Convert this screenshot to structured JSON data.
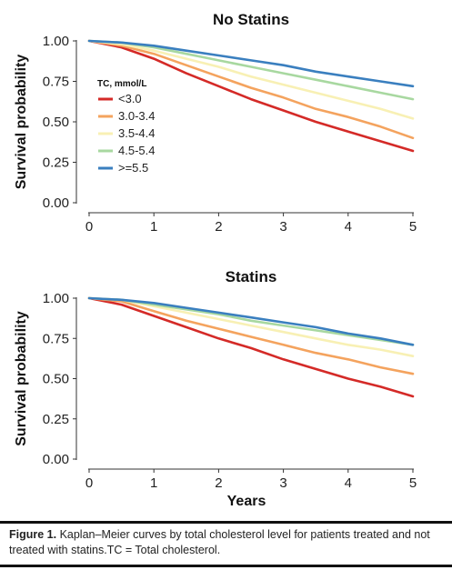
{
  "legend": {
    "title": "TC, mmol/L"
  },
  "chart_data": [
    {
      "type": "line",
      "title": "No Statins",
      "xlabel": "",
      "ylabel": "Survival probability",
      "xlim": [
        0,
        5
      ],
      "ylim": [
        0,
        1
      ],
      "x_ticks": [
        "0",
        "1",
        "2",
        "3",
        "4",
        "5"
      ],
      "y_ticks": [
        "0.00",
        "0.25",
        "0.50",
        "0.75",
        "1.00"
      ],
      "legend_position": "top-left",
      "x": [
        0,
        0.5,
        1,
        1.5,
        2,
        2.5,
        3,
        3.5,
        4,
        4.5,
        5
      ],
      "series": [
        {
          "name": "<3.0",
          "color": "#d42a27",
          "values": [
            1.0,
            0.96,
            0.89,
            0.8,
            0.72,
            0.64,
            0.57,
            0.5,
            0.44,
            0.38,
            0.32
          ]
        },
        {
          "name": "3.0-3.4",
          "color": "#f4a35e",
          "values": [
            1.0,
            0.97,
            0.92,
            0.85,
            0.78,
            0.71,
            0.65,
            0.58,
            0.53,
            0.47,
            0.4
          ]
        },
        {
          "name": "3.5-4.4",
          "color": "#f8f0b4",
          "values": [
            1.0,
            0.98,
            0.94,
            0.89,
            0.84,
            0.78,
            0.73,
            0.68,
            0.63,
            0.58,
            0.52
          ]
        },
        {
          "name": "4.5-5.4",
          "color": "#a8d8a0",
          "values": [
            1.0,
            0.99,
            0.96,
            0.92,
            0.88,
            0.84,
            0.8,
            0.76,
            0.72,
            0.68,
            0.64
          ]
        },
        {
          "name": ">=5.5",
          "color": "#3a7fbf",
          "values": [
            1.0,
            0.99,
            0.97,
            0.94,
            0.91,
            0.88,
            0.85,
            0.81,
            0.78,
            0.75,
            0.72
          ]
        }
      ]
    },
    {
      "type": "line",
      "title": "Statins",
      "xlabel": "Years",
      "ylabel": "Survival probability",
      "xlim": [
        0,
        5
      ],
      "ylim": [
        0,
        1
      ],
      "x_ticks": [
        "0",
        "1",
        "2",
        "3",
        "4",
        "5"
      ],
      "y_ticks": [
        "0.00",
        "0.25",
        "0.50",
        "0.75",
        "1.00"
      ],
      "x": [
        0,
        0.5,
        1,
        1.5,
        2,
        2.5,
        3,
        3.5,
        4,
        4.5,
        5
      ],
      "series": [
        {
          "name": "<3.0",
          "color": "#d42a27",
          "values": [
            1.0,
            0.96,
            0.89,
            0.82,
            0.75,
            0.69,
            0.62,
            0.56,
            0.5,
            0.45,
            0.39
          ]
        },
        {
          "name": "3.0-3.4",
          "color": "#f4a35e",
          "values": [
            1.0,
            0.98,
            0.92,
            0.86,
            0.81,
            0.76,
            0.71,
            0.66,
            0.62,
            0.57,
            0.53
          ]
        },
        {
          "name": "3.5-4.4",
          "color": "#f8f0b4",
          "values": [
            1.0,
            0.99,
            0.95,
            0.91,
            0.87,
            0.83,
            0.79,
            0.75,
            0.71,
            0.68,
            0.64
          ]
        },
        {
          "name": "4.5-5.4",
          "color": "#a8d8a0",
          "values": [
            1.0,
            0.99,
            0.96,
            0.93,
            0.9,
            0.86,
            0.83,
            0.8,
            0.77,
            0.74,
            0.71
          ]
        },
        {
          "name": ">=5.5",
          "color": "#3a7fbf",
          "values": [
            1.0,
            0.99,
            0.97,
            0.94,
            0.91,
            0.88,
            0.85,
            0.82,
            0.78,
            0.75,
            0.71
          ]
        }
      ]
    }
  ],
  "caption": {
    "label": "Figure 1.",
    "text": " Kaplan–Meier curves by total cholesterol level for patients treated and not treated with statins.TC = Total cholesterol."
  }
}
